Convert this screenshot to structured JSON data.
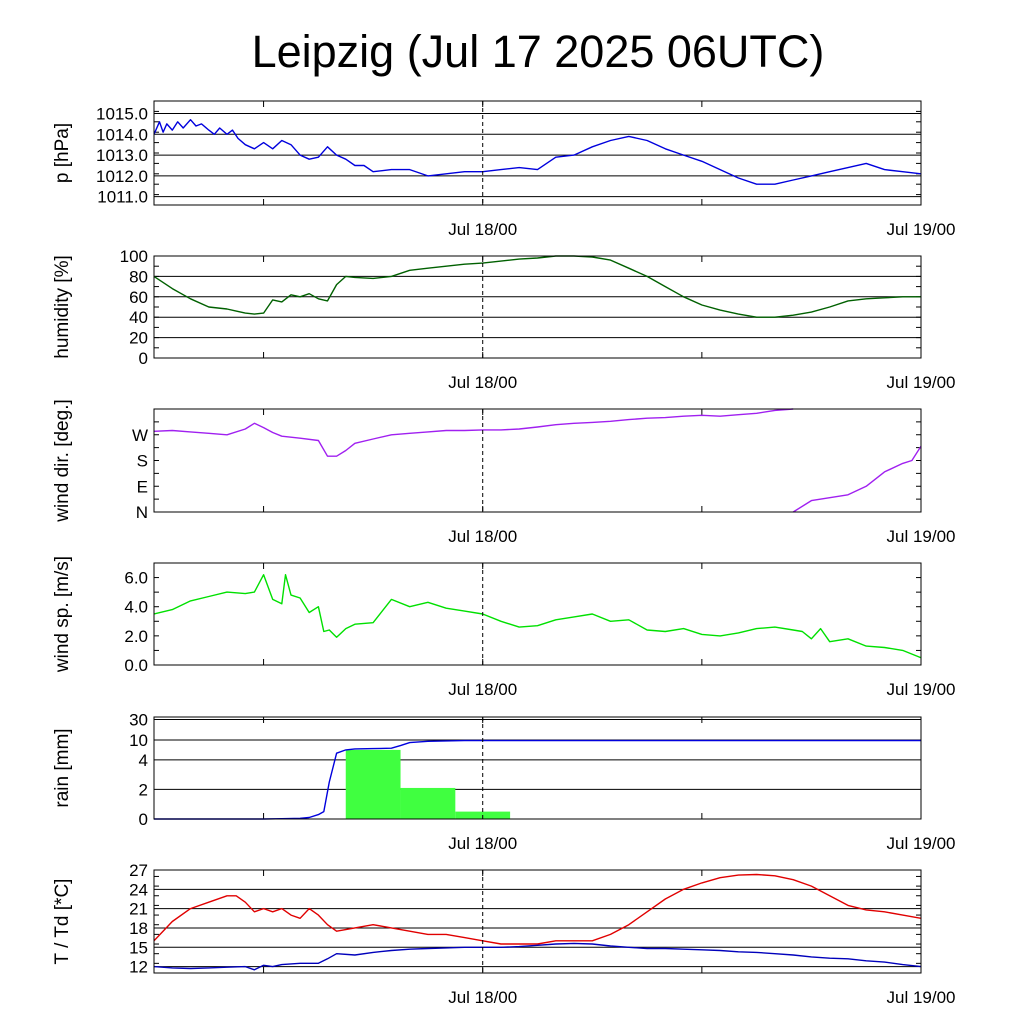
{
  "title": "Leipzig (Jul 17 2025 06UTC)",
  "x_tick_labels": [
    "Jul 18/00",
    "Jul 19/00"
  ],
  "chart_data": [
    {
      "type": "line",
      "ylabel": "p [hPa]",
      "ylim": [
        1010.6,
        1015.6
      ],
      "yticks": [
        1011.0,
        1012.0,
        1013.0,
        1014.0,
        1015.0
      ],
      "ytick_labels": [
        "1011.0",
        "1012.0",
        "1013.0",
        "1014.0",
        "1015.0"
      ],
      "grid": true,
      "x_hours_range": [
        0,
        42
      ],
      "series": [
        {
          "color": "#0000dd",
          "x": [
            0,
            0.3,
            0.5,
            0.7,
            1,
            1.3,
            1.6,
            2,
            2.3,
            2.6,
            3,
            3.3,
            3.6,
            4,
            4.3,
            4.6,
            5,
            5.5,
            6,
            6.5,
            7,
            7.5,
            8,
            8.5,
            9,
            9.5,
            10,
            10.5,
            11,
            11.5,
            12,
            13,
            14,
            15,
            16,
            17,
            18,
            19,
            20,
            21,
            22,
            23,
            24,
            25,
            26,
            27,
            28,
            29,
            30,
            31,
            32,
            33,
            34,
            35,
            36,
            37,
            38,
            39,
            40,
            41,
            42
          ],
          "y": [
            1014.0,
            1014.6,
            1014.1,
            1014.5,
            1014.2,
            1014.6,
            1014.3,
            1014.7,
            1014.4,
            1014.5,
            1014.2,
            1014.0,
            1014.3,
            1014.0,
            1014.2,
            1013.8,
            1013.5,
            1013.3,
            1013.6,
            1013.3,
            1013.7,
            1013.5,
            1013.0,
            1012.8,
            1012.9,
            1013.4,
            1013.0,
            1012.8,
            1012.5,
            1012.5,
            1012.2,
            1012.3,
            1012.3,
            1012.0,
            1012.1,
            1012.2,
            1012.2,
            1012.3,
            1012.4,
            1012.3,
            1012.9,
            1013.0,
            1013.4,
            1013.7,
            1013.9,
            1013.7,
            1013.3,
            1013.0,
            1012.7,
            1012.3,
            1011.9,
            1011.6,
            1011.6,
            1011.8,
            1012.0,
            1012.2,
            1012.4,
            1012.6,
            1012.3,
            1012.2,
            1012.1
          ]
        }
      ]
    },
    {
      "type": "line",
      "ylabel": "humidity [%]",
      "ylim": [
        0,
        100
      ],
      "yticks": [
        0,
        20,
        40,
        60,
        80,
        100
      ],
      "ytick_labels": [
        "0",
        "20",
        "40",
        "60",
        "80",
        "100"
      ],
      "grid": true,
      "x_hours_range": [
        0,
        42
      ],
      "series": [
        {
          "color": "#006000",
          "x": [
            0,
            1,
            2,
            3,
            4,
            4.5,
            5,
            5.5,
            6,
            6.5,
            7,
            7.5,
            8,
            8.5,
            9,
            9.5,
            10,
            10.5,
            11,
            12,
            13,
            14,
            15,
            16,
            17,
            18,
            19,
            20,
            21,
            22,
            23,
            24,
            25,
            26,
            27,
            28,
            29,
            30,
            31,
            32,
            33,
            34,
            35,
            36,
            37,
            38,
            39,
            40,
            41,
            42
          ],
          "y": [
            80,
            68,
            58,
            50,
            48,
            46,
            44,
            43,
            44,
            57,
            55,
            62,
            60,
            63,
            58,
            56,
            72,
            80,
            79,
            78,
            80,
            86,
            88,
            90,
            92,
            93,
            95,
            97,
            98,
            100,
            100,
            99,
            96,
            88,
            80,
            70,
            60,
            52,
            47,
            43,
            40,
            40,
            42,
            45,
            50,
            56,
            58,
            59,
            60,
            60
          ]
        }
      ]
    },
    {
      "type": "line",
      "ylabel": "wind dir. [deg.]",
      "ylim": [
        0,
        360
      ],
      "yticks": [
        0,
        90,
        180,
        270
      ],
      "ytick_labels": [
        "N",
        "E",
        "S",
        "W"
      ],
      "grid": false,
      "x_hours_range": [
        0,
        42
      ],
      "series": [
        {
          "color": "#a020f0",
          "x": [
            0,
            1,
            2,
            3,
            4,
            5,
            5.5,
            6,
            6.5,
            7,
            8,
            9,
            9.5,
            10,
            10.5,
            11,
            12,
            13,
            14,
            15,
            16,
            17,
            18,
            19,
            20,
            21,
            22,
            23,
            24,
            25,
            26,
            27,
            28,
            29,
            30,
            31,
            32,
            33,
            34,
            35
          ],
          "y": [
            282,
            285,
            280,
            275,
            270,
            290,
            310,
            295,
            278,
            265,
            258,
            250,
            195,
            195,
            215,
            240,
            255,
            270,
            275,
            280,
            285,
            285,
            287,
            287,
            290,
            297,
            305,
            310,
            313,
            317,
            323,
            328,
            330,
            335,
            338,
            335,
            340,
            345,
            355,
            360
          ]
        },
        {
          "color": "#a020f0",
          "x": [
            35,
            36,
            37,
            38,
            39,
            40,
            41,
            41.5,
            42
          ],
          "y": [
            0,
            40,
            50,
            60,
            90,
            140,
            170,
            180,
            230
          ]
        }
      ]
    },
    {
      "type": "line",
      "ylabel": "wind sp. [m/s]",
      "ylim": [
        0,
        7
      ],
      "yticks": [
        0,
        2,
        4,
        6
      ],
      "ytick_labels": [
        "0.0",
        "2.0",
        "4.0",
        "6.0"
      ],
      "grid": false,
      "x_hours_range": [
        0,
        42
      ],
      "series": [
        {
          "color": "#00e000",
          "x": [
            0,
            1,
            2,
            3,
            4,
            5,
            5.5,
            6,
            6.5,
            7,
            7.2,
            7.5,
            8,
            8.5,
            9,
            9.3,
            9.6,
            10,
            10.5,
            11,
            12,
            13,
            14,
            15,
            16,
            17,
            18,
            19,
            20,
            21,
            22,
            23,
            24,
            25,
            26,
            27,
            28,
            29,
            30,
            31,
            32,
            33,
            34,
            35,
            35.5,
            36,
            36.5,
            37,
            38,
            39,
            40,
            41,
            42
          ],
          "y": [
            3.5,
            3.8,
            4.4,
            4.7,
            5.0,
            4.9,
            5.0,
            6.2,
            4.5,
            4.2,
            6.2,
            4.8,
            4.6,
            3.6,
            4.0,
            2.3,
            2.4,
            1.9,
            2.5,
            2.8,
            2.9,
            4.5,
            4.0,
            4.3,
            3.9,
            3.7,
            3.5,
            3.0,
            2.6,
            2.7,
            3.1,
            3.3,
            3.5,
            3.0,
            3.1,
            2.4,
            2.3,
            2.5,
            2.1,
            2.0,
            2.2,
            2.5,
            2.6,
            2.4,
            2.3,
            1.8,
            2.5,
            1.6,
            1.8,
            1.3,
            1.2,
            1.0,
            0.5
          ]
        }
      ]
    },
    {
      "type": "bar",
      "ylabel": "rain [mm]",
      "ylim": [
        0,
        30
      ],
      "yticks": [
        0,
        2,
        4,
        10,
        30
      ],
      "ytick_labels": [
        "0",
        "2",
        "4",
        "10",
        "30"
      ],
      "grid": true,
      "x_hours_range": [
        0,
        42
      ],
      "bars": [
        {
          "x0": 10.5,
          "x1": 13.5,
          "value": 7.0,
          "color": "#40ff40"
        },
        {
          "x0": 13.5,
          "x1": 16.5,
          "value": 2.1,
          "color": "#40ff40"
        },
        {
          "x0": 16.5,
          "x1": 19.5,
          "value": 0.5,
          "color": "#40ff40"
        }
      ],
      "series": [
        {
          "color": "#0000dd",
          "x": [
            0,
            5,
            6,
            7,
            8,
            8.5,
            9,
            9.3,
            9.6,
            10,
            10.5,
            11,
            12,
            13,
            13.5,
            14,
            15,
            16,
            17,
            18,
            20,
            25,
            30,
            35,
            42
          ],
          "y": [
            0,
            0,
            0,
            0.02,
            0.05,
            0.1,
            0.3,
            0.5,
            2.5,
            6.0,
            7.0,
            7.3,
            7.4,
            7.5,
            8.3,
            9.2,
            9.6,
            9.7,
            9.8,
            9.8,
            9.8,
            9.8,
            9.8,
            9.8,
            9.8
          ]
        }
      ]
    },
    {
      "type": "line",
      "ylabel": "T / Td [*C]",
      "ylim": [
        11,
        27
      ],
      "yticks": [
        12,
        15,
        18,
        21,
        24,
        27
      ],
      "ytick_labels": [
        "12",
        "15",
        "18",
        "21",
        "24",
        "27"
      ],
      "grid": true,
      "x_hours_range": [
        0,
        42
      ],
      "series": [
        {
          "name": "T",
          "color": "#e00000",
          "x": [
            0,
            1,
            2,
            3,
            4,
            4.5,
            5,
            5.5,
            6,
            6.5,
            7,
            7.5,
            8,
            8.5,
            9,
            9.5,
            10,
            11,
            12,
            13,
            14,
            15,
            16,
            17,
            18,
            19,
            20,
            21,
            22,
            23,
            24,
            25,
            26,
            27,
            28,
            29,
            30,
            31,
            32,
            33,
            34,
            35,
            36,
            37,
            38,
            39,
            40,
            41,
            42
          ],
          "y": [
            16,
            19,
            21,
            22,
            23,
            23,
            22,
            20.5,
            21,
            20.5,
            21,
            20,
            19.5,
            21,
            20,
            18.5,
            17.5,
            18,
            18.5,
            18,
            17.5,
            17,
            17,
            16.5,
            16,
            15.5,
            15.5,
            15.5,
            16,
            16,
            16,
            17,
            18.5,
            20.5,
            22.5,
            24,
            25,
            25.8,
            26.2,
            26.3,
            26.1,
            25.5,
            24.5,
            23,
            21.5,
            20.8,
            20.5,
            20,
            19.5
          ]
        },
        {
          "name": "Td",
          "color": "#0000bb",
          "x": [
            0,
            1,
            2,
            3,
            4,
            5,
            5.5,
            6,
            6.5,
            7,
            8,
            9,
            9.5,
            10,
            11,
            12,
            13,
            14,
            15,
            16,
            17,
            18,
            19,
            20,
            21,
            22,
            23,
            24,
            25,
            26,
            27,
            28,
            29,
            30,
            31,
            32,
            33,
            34,
            35,
            36,
            37,
            38,
            39,
            40,
            41,
            42
          ],
          "y": [
            12,
            11.8,
            11.7,
            11.8,
            11.9,
            12.0,
            11.5,
            12.2,
            12.0,
            12.3,
            12.5,
            12.5,
            13.2,
            14.0,
            13.8,
            14.2,
            14.5,
            14.7,
            14.8,
            14.9,
            15.0,
            15.0,
            15.0,
            15.1,
            15.3,
            15.5,
            15.6,
            15.5,
            15.2,
            15.0,
            14.8,
            14.8,
            14.7,
            14.6,
            14.5,
            14.3,
            14.2,
            14.0,
            13.8,
            13.5,
            13.3,
            13.2,
            12.9,
            12.7,
            12.3,
            12.0
          ]
        }
      ]
    }
  ]
}
